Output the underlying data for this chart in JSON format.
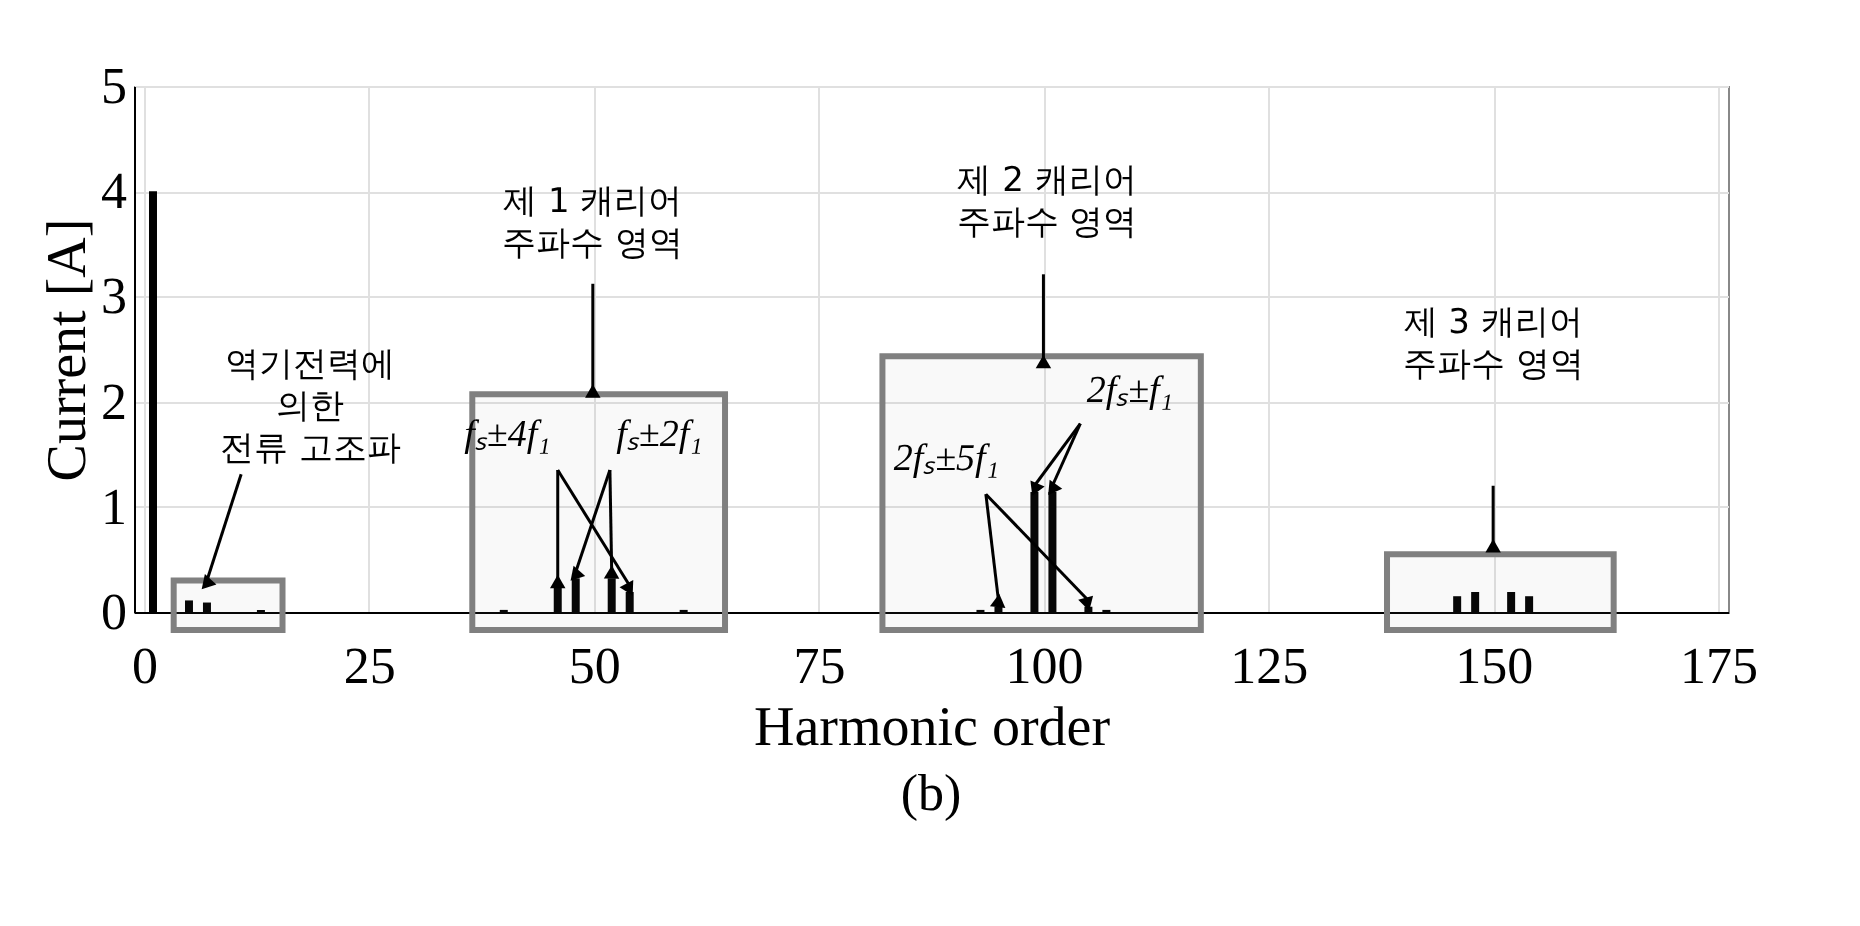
{
  "chart_data": {
    "type": "bar",
    "title": "(b)",
    "xlabel": "Harmonic order",
    "ylabel": "Current [A]",
    "x": [
      1,
      5,
      7,
      13,
      40,
      46,
      48,
      52,
      54,
      60,
      93,
      95,
      99,
      101,
      105,
      107,
      146,
      148,
      152,
      154
    ],
    "values": [
      4.0,
      0.11,
      0.09,
      0.02,
      0.02,
      0.23,
      0.32,
      0.32,
      0.19,
      0.02,
      0.02,
      0.05,
      1.14,
      1.14,
      0.05,
      0.02,
      0.15,
      0.19,
      0.19,
      0.15
    ],
    "color": "#000000",
    "xlim": [
      0,
      175
    ],
    "xticks": [
      0,
      25,
      50,
      75,
      100,
      125,
      150,
      175
    ],
    "ylim": [
      0,
      5
    ],
    "yticks": [
      0,
      1,
      2,
      3,
      4,
      5
    ],
    "grid": true,
    "annotations": [
      {
        "text": "역기전력에\n의한\n전류 고조파",
        "x": 7,
        "y": 0.3
      },
      {
        "text": "제 1 캐리어\n주파수 영역",
        "x": 49.9,
        "y": 2.07
      },
      "제 2 캐리어\n주파수 영역",
      "제 3 캐리어\n주파수 영역",
      {
        "text": "fₛ±4f₁",
        "x": 46,
        "y": 0.23
      },
      {
        "text": "fₛ±2f₁",
        "x": 48,
        "y": 0.32
      },
      {
        "text": "2fₛ±5f₁",
        "x": 95,
        "y": 0.05
      },
      {
        "text": "2fₛ±f₁",
        "x": 99,
        "y": 1.14
      }
    ],
    "bands": [
      {
        "axis": "x",
        "from": 3.3,
        "to": 15.4,
        "color": "#808080"
      },
      {
        "axis": "x",
        "from": 36.5,
        "to": 64.6,
        "color": "#808080"
      },
      {
        "axis": "x",
        "from": 82.1,
        "to": 117.5,
        "color": "#808080"
      },
      {
        "axis": "x",
        "from": 138.2,
        "to": 163.4,
        "color": "#808080"
      }
    ]
  }
}
